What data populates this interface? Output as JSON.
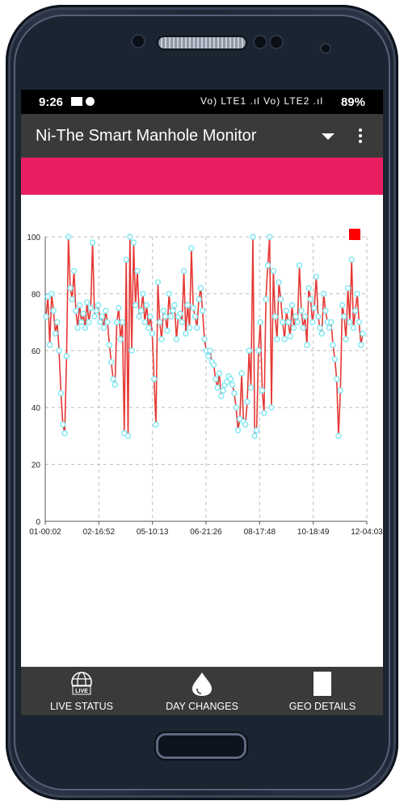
{
  "status_bar": {
    "time": "9:26",
    "network_text": "Vo) LTE1 .ıl Vo) LTE2 .ıl",
    "battery": "89%"
  },
  "app_bar": {
    "title": "Ni-The Smart Manhole Monitor"
  },
  "chart_data": {
    "type": "line",
    "yticks": [
      "0",
      "20",
      "40",
      "60",
      "80",
      "100"
    ],
    "xticks": [
      "01-00:02",
      "02-16:52",
      "05-10:13",
      "06-21:26",
      "08-17:48",
      "10-18:49",
      "12-04:03"
    ],
    "ylim": [
      0,
      100
    ],
    "grid": true,
    "series_color": "#e53935",
    "marker_color": "#7fe8f2",
    "legend_marker_color": "#ff0000",
    "series": [
      {
        "values": [
          72,
          79,
          62,
          80,
          74,
          66,
          70,
          60,
          45,
          34,
          31,
          58,
          100,
          82,
          78,
          88,
          74,
          68,
          76,
          70,
          73,
          68,
          77,
          70,
          75,
          98,
          72,
          74,
          76,
          70,
          72,
          68,
          74,
          70,
          62,
          56,
          50,
          48,
          70,
          75,
          64,
          70,
          31,
          92,
          30,
          100,
          60,
          98,
          76,
          88,
          72,
          74,
          80,
          70,
          76,
          68,
          72,
          66,
          50,
          34,
          84,
          70,
          64,
          74,
          72,
          67,
          80,
          72,
          74,
          76,
          64,
          72,
          73,
          70,
          88,
          66,
          76,
          68,
          96,
          75,
          72,
          68,
          78,
          82,
          74,
          64,
          60,
          58,
          60,
          56,
          55,
          50,
          47,
          52,
          44,
          46,
          48,
          49,
          51,
          50,
          48,
          45,
          40,
          32,
          36,
          52,
          35,
          34,
          42,
          60,
          47,
          100,
          30,
          32,
          60,
          70,
          46,
          38,
          78,
          90,
          100,
          40,
          88,
          72,
          64,
          84,
          78,
          70,
          64,
          74,
          70,
          65,
          76,
          68,
          72,
          70,
          90,
          74,
          68,
          72,
          62,
          82,
          78,
          70,
          75,
          86,
          72,
          68,
          66,
          80,
          74,
          70,
          68,
          70,
          62,
          57,
          50,
          30,
          46,
          76,
          72,
          64,
          82,
          70,
          92,
          68,
          74,
          80,
          70,
          62,
          66
        ]
      }
    ]
  },
  "bottom_nav": {
    "items": [
      {
        "label": "LIVE STATUS",
        "icon": "live-globe-icon"
      },
      {
        "label": "DAY CHANGES",
        "icon": "water-drop-icon"
      },
      {
        "label": "GEO DETAILS",
        "icon": "document-icon"
      }
    ],
    "globe_badge": "LIVE"
  }
}
